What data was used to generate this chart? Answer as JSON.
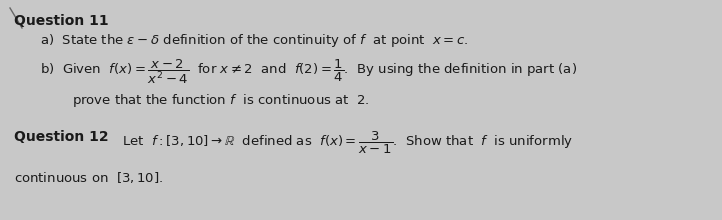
{
  "background_color": "#c8c8c8",
  "text_color": "#1a1a1a",
  "fig_width": 7.22,
  "fig_height": 2.2,
  "dpi": 100,
  "font_size_body": 9.5,
  "font_size_heading": 10.0
}
